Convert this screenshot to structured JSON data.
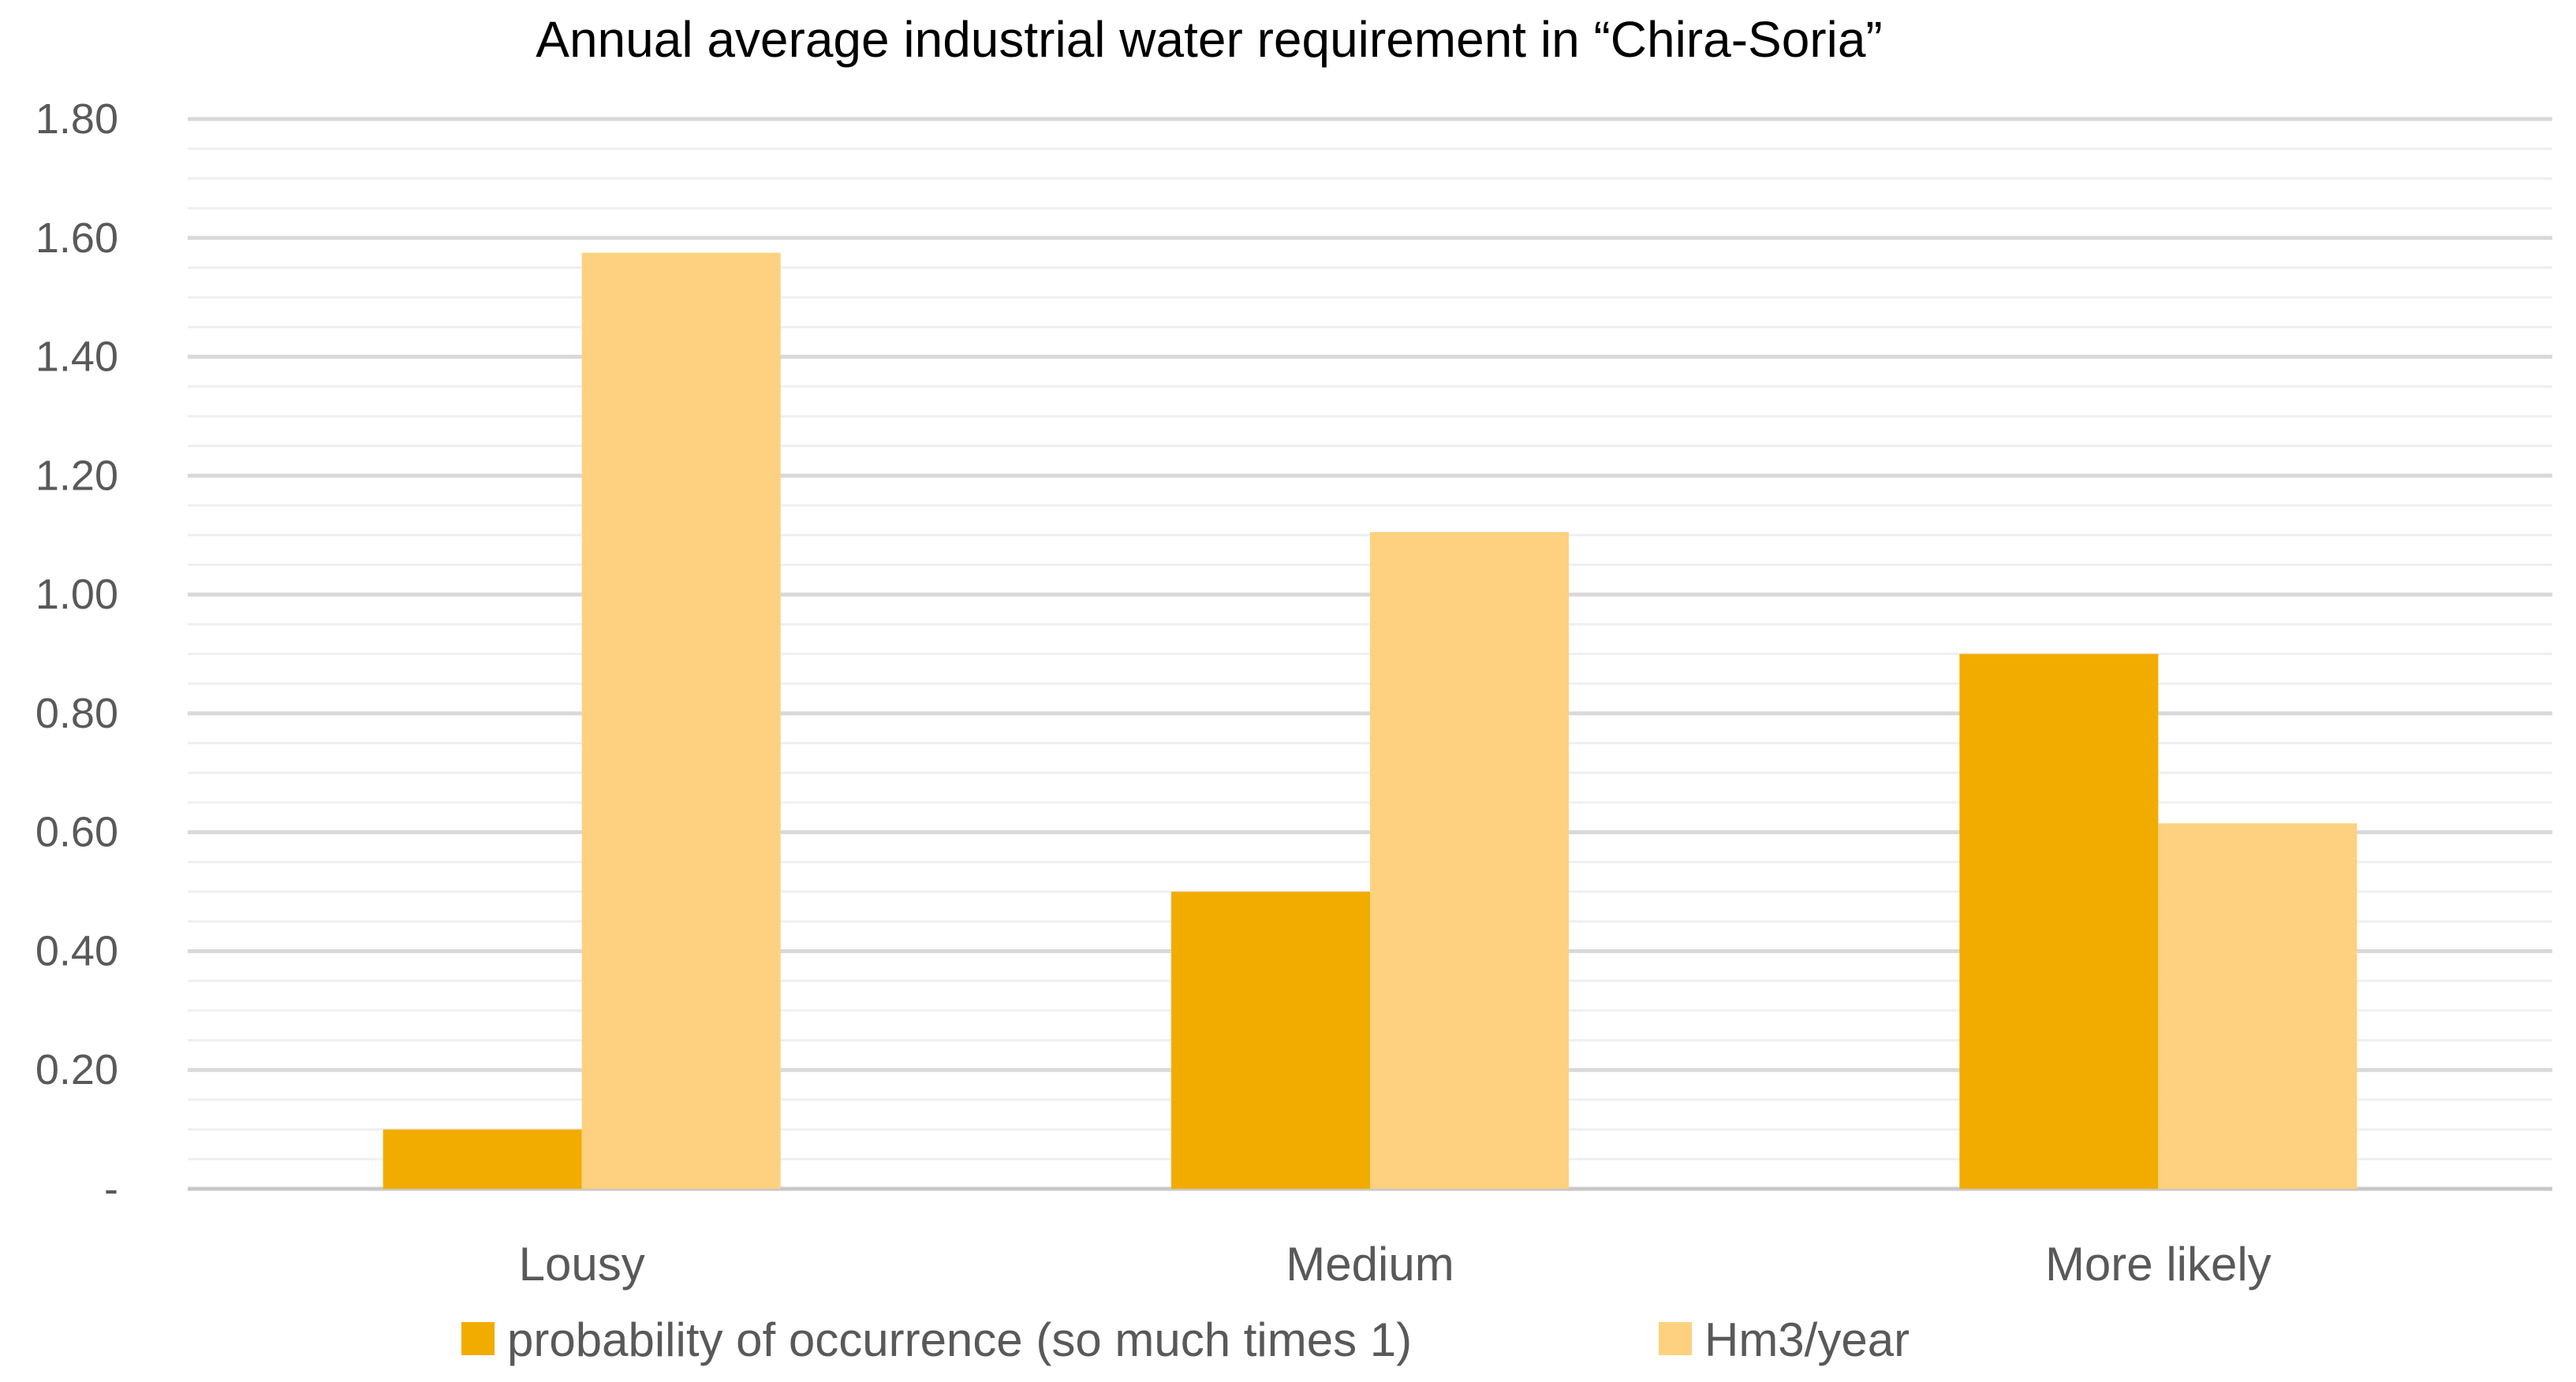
{
  "chart_data": {
    "type": "bar",
    "title": "Annual average industrial water requirement in “Chira-Soria”",
    "categories": [
      "Lousy",
      "Medium",
      "More likely"
    ],
    "series": [
      {
        "name": "probability of occurrence (so much times 1)",
        "values": [
          0.1,
          0.5,
          0.9
        ],
        "color": "#F2AC00"
      },
      {
        "name": "Hm3/year",
        "values": [
          1.575,
          1.105,
          0.615
        ],
        "color": "#FDD17F"
      }
    ],
    "ylim": [
      0,
      1.8
    ],
    "yticks": [
      0,
      0.2,
      0.4,
      0.6,
      0.8,
      1.0,
      1.2,
      1.4,
      1.6,
      1.8
    ],
    "ytick_labels": [
      "-",
      "0.20",
      "0.40",
      "0.60",
      "0.80",
      "1.00",
      "1.20",
      "1.40",
      "1.60",
      "1.80"
    ],
    "minor_step": 0.05,
    "xlabel": "",
    "ylabel": "",
    "legend_position": "bottom",
    "grid": true
  }
}
